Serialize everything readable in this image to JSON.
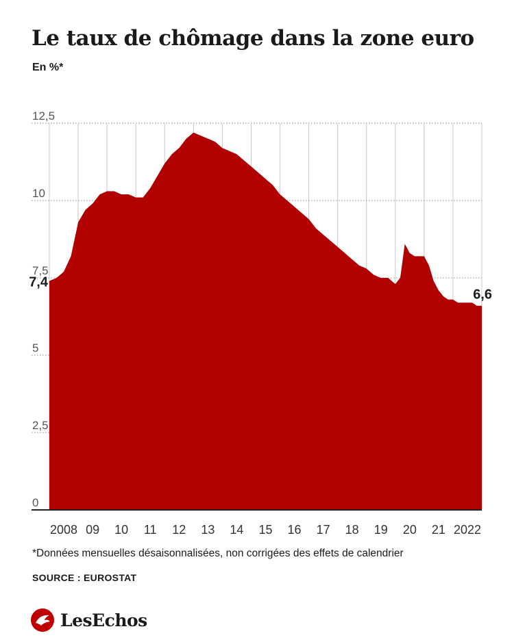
{
  "header": {
    "title": "Le taux de chômage dans la zone euro",
    "subtitle": "En %*"
  },
  "footer": {
    "footnote": "*Données mensuelles désaisonnalisées, non corrigées des effets de calendrier",
    "source": "SOURCE : EUROSTAT",
    "brand": "LesEchos"
  },
  "colors": {
    "area": "#b00000",
    "grid": "#c8c8c8",
    "text": "#1a1a1a"
  },
  "chart_data": {
    "type": "area",
    "title": "Le taux de chômage dans la zone euro",
    "ylabel": "En %*",
    "ylim": [
      0,
      12.5
    ],
    "yticks": [
      0,
      2.5,
      5,
      7.5,
      10,
      12.5
    ],
    "ytick_labels": [
      "0",
      "2,5",
      "5",
      "7,5",
      "10",
      "12,5"
    ],
    "xlim": [
      2008,
      2023
    ],
    "xtick_labels": [
      "2008",
      "09",
      "10",
      "11",
      "12",
      "13",
      "14",
      "15",
      "16",
      "17",
      "18",
      "19",
      "20",
      "21",
      "2022"
    ],
    "grid": true,
    "series": [
      {
        "x": [
          2008.0,
          2008.25,
          2008.5,
          2008.75,
          2009.0,
          2009.25,
          2009.5,
          2009.75,
          2010.0,
          2010.25,
          2010.5,
          2010.75,
          2011.0,
          2011.25,
          2011.5,
          2011.75,
          2012.0,
          2012.25,
          2012.5,
          2012.75,
          2013.0,
          2013.25,
          2013.5,
          2013.75,
          2014.0,
          2014.25,
          2014.5,
          2014.75,
          2015.0,
          2015.25,
          2015.5,
          2015.75,
          2016.0,
          2016.25,
          2016.5,
          2016.75,
          2017.0,
          2017.25,
          2017.5,
          2017.75,
          2018.0,
          2018.25,
          2018.5,
          2018.75,
          2019.0,
          2019.25,
          2019.5,
          2019.75,
          2020.0,
          2020.17,
          2020.33,
          2020.5,
          2020.67,
          2020.83,
          2021.0,
          2021.17,
          2021.33,
          2021.5,
          2021.67,
          2021.83,
          2022.0,
          2022.17,
          2022.33,
          2022.5,
          2022.67,
          2022.83,
          2023.0
        ],
        "values": [
          7.4,
          7.5,
          7.7,
          8.2,
          9.3,
          9.7,
          9.9,
          10.2,
          10.3,
          10.3,
          10.2,
          10.2,
          10.1,
          10.1,
          10.4,
          10.8,
          11.2,
          11.5,
          11.7,
          12.0,
          12.2,
          12.1,
          12.0,
          11.9,
          11.7,
          11.6,
          11.5,
          11.3,
          11.1,
          10.9,
          10.7,
          10.5,
          10.2,
          10.0,
          9.8,
          9.6,
          9.4,
          9.1,
          8.9,
          8.7,
          8.5,
          8.3,
          8.1,
          7.9,
          7.8,
          7.6,
          7.5,
          7.5,
          7.3,
          7.5,
          8.6,
          8.3,
          8.2,
          8.2,
          8.2,
          7.9,
          7.4,
          7.1,
          6.9,
          6.8,
          6.8,
          6.7,
          6.7,
          6.7,
          6.7,
          6.6,
          6.6
        ]
      }
    ],
    "annotations": [
      {
        "x": 2008.0,
        "y": 7.4,
        "label": "7,4"
      },
      {
        "x": 2023.0,
        "y": 6.6,
        "label": "6,6"
      }
    ]
  }
}
